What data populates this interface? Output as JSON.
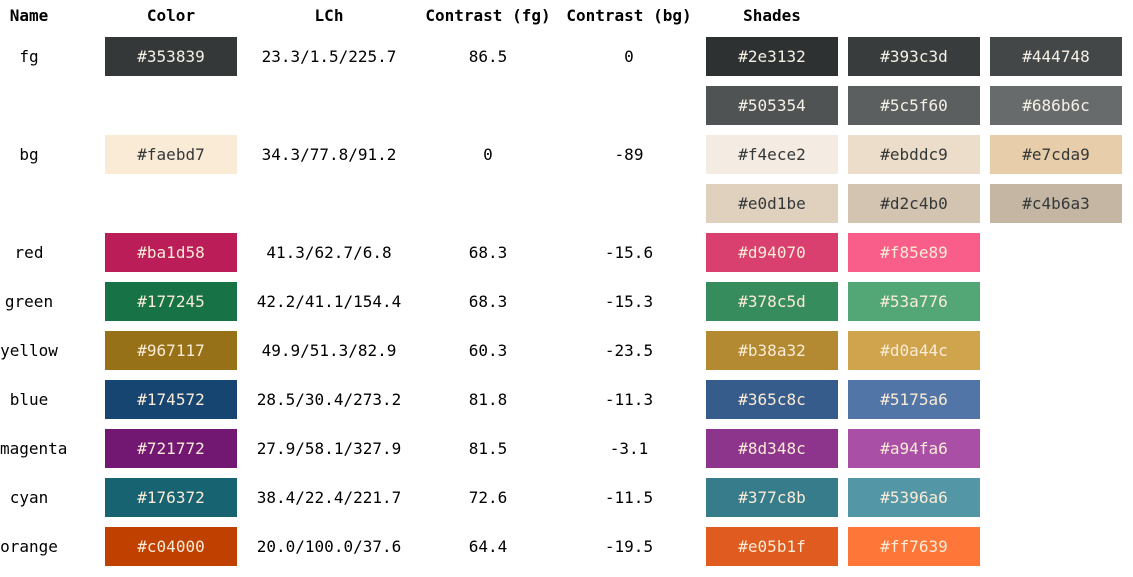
{
  "headers": {
    "name": "Name",
    "color": "Color",
    "lch": "LCh",
    "contrast_fg": "Contrast (fg)",
    "contrast_bg": "Contrast (bg)",
    "shades": "Shades"
  },
  "rows": [
    {
      "name": "fg",
      "color": "#353839",
      "text": "#f5f0e6",
      "lch": "23.3/1.5/225.7",
      "cfg": "86.5",
      "cbg": "0",
      "shades": [
        {
          "hex": "#2e3132",
          "text": "#f5f0e6"
        },
        {
          "hex": "#393c3d",
          "text": "#f5f0e6"
        },
        {
          "hex": "#444748",
          "text": "#f5f0e6"
        }
      ]
    },
    {
      "name": "",
      "color": "",
      "text": "",
      "lch": "",
      "cfg": "",
      "cbg": "",
      "shades": [
        {
          "hex": "#505354",
          "text": "#f5f0e6"
        },
        {
          "hex": "#5c5f60",
          "text": "#f5f0e6"
        },
        {
          "hex": "#686b6c",
          "text": "#f5f0e6"
        }
      ]
    },
    {
      "name": "bg",
      "color": "#faebd7",
      "text": "#353839",
      "lch": "34.3/77.8/91.2",
      "cfg": "0",
      "cbg": "-89",
      "shades": [
        {
          "hex": "#f4ece2",
          "text": "#353839"
        },
        {
          "hex": "#ebddc9",
          "text": "#353839"
        },
        {
          "hex": "#e7cda9",
          "text": "#353839"
        }
      ]
    },
    {
      "name": "",
      "color": "",
      "text": "",
      "lch": "",
      "cfg": "",
      "cbg": "",
      "shades": [
        {
          "hex": "#e0d1be",
          "text": "#353839"
        },
        {
          "hex": "#d2c4b0",
          "text": "#353839"
        },
        {
          "hex": "#c4b6a3",
          "text": "#353839"
        }
      ]
    },
    {
      "name": "red",
      "color": "#ba1d58",
      "text": "#faebd7",
      "lch": "41.3/62.7/6.8",
      "cfg": "68.3",
      "cbg": "-15.6",
      "shades": [
        {
          "hex": "#d94070",
          "text": "#faebd7"
        },
        {
          "hex": "#f85e89",
          "text": "#faebd7"
        }
      ]
    },
    {
      "name": "green",
      "color": "#177245",
      "text": "#faebd7",
      "lch": "42.2/41.1/154.4",
      "cfg": "68.3",
      "cbg": "-15.3",
      "shades": [
        {
          "hex": "#378c5d",
          "text": "#faebd7"
        },
        {
          "hex": "#53a776",
          "text": "#faebd7"
        }
      ]
    },
    {
      "name": "yellow",
      "color": "#967117",
      "text": "#faebd7",
      "lch": "49.9/51.3/82.9",
      "cfg": "60.3",
      "cbg": "-23.5",
      "shades": [
        {
          "hex": "#b38a32",
          "text": "#faebd7"
        },
        {
          "hex": "#d0a44c",
          "text": "#faebd7"
        }
      ]
    },
    {
      "name": "blue",
      "color": "#174572",
      "text": "#faebd7",
      "lch": "28.5/30.4/273.2",
      "cfg": "81.8",
      "cbg": "-11.3",
      "shades": [
        {
          "hex": "#365c8c",
          "text": "#faebd7"
        },
        {
          "hex": "#5175a6",
          "text": "#faebd7"
        }
      ]
    },
    {
      "name": "magenta",
      "color": "#721772",
      "text": "#faebd7",
      "lch": "27.9/58.1/327.9",
      "cfg": "81.5",
      "cbg": "-3.1",
      "shades": [
        {
          "hex": "#8d348c",
          "text": "#faebd7"
        },
        {
          "hex": "#a94fa6",
          "text": "#faebd7"
        }
      ]
    },
    {
      "name": "cyan",
      "color": "#176372",
      "text": "#faebd7",
      "lch": "38.4/22.4/221.7",
      "cfg": "72.6",
      "cbg": "-11.5",
      "shades": [
        {
          "hex": "#377c8b",
          "text": "#faebd7"
        },
        {
          "hex": "#5396a6",
          "text": "#faebd7"
        }
      ]
    },
    {
      "name": "orange",
      "color": "#c04000",
      "text": "#faebd7",
      "lch": "20.0/100.0/37.6",
      "cfg": "64.4",
      "cbg": "-19.5",
      "shades": [
        {
          "hex": "#e05b1f",
          "text": "#faebd7"
        },
        {
          "hex": "#ff7639",
          "text": "#faebd7"
        }
      ]
    }
  ]
}
